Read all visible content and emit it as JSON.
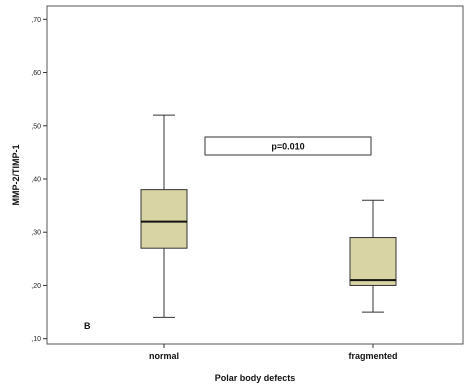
{
  "chart_data": {
    "type": "box",
    "title": "",
    "xlabel": "Polar body defects",
    "ylabel": "MMP-2/TIMP-1",
    "ylim": [
      0.09,
      0.725
    ],
    "yticks": [
      0.1,
      0.2,
      0.3,
      0.4,
      0.5,
      0.6,
      0.7
    ],
    "ytick_labels": [
      ",10",
      ",20",
      ",30",
      ",40",
      ",50",
      ",60",
      ",70"
    ],
    "categories": [
      "normal",
      "fragmented"
    ],
    "boxes": [
      {
        "category": "normal",
        "min": 0.14,
        "q1": 0.27,
        "median": 0.32,
        "q3": 0.38,
        "max": 0.52
      },
      {
        "category": "fragmented",
        "min": 0.15,
        "q1": 0.2,
        "median": 0.21,
        "q3": 0.29,
        "max": 0.36
      }
    ],
    "annotation": "p=0.010",
    "panel_label": "B",
    "box_color": "#d8d4a4",
    "grid": false
  }
}
